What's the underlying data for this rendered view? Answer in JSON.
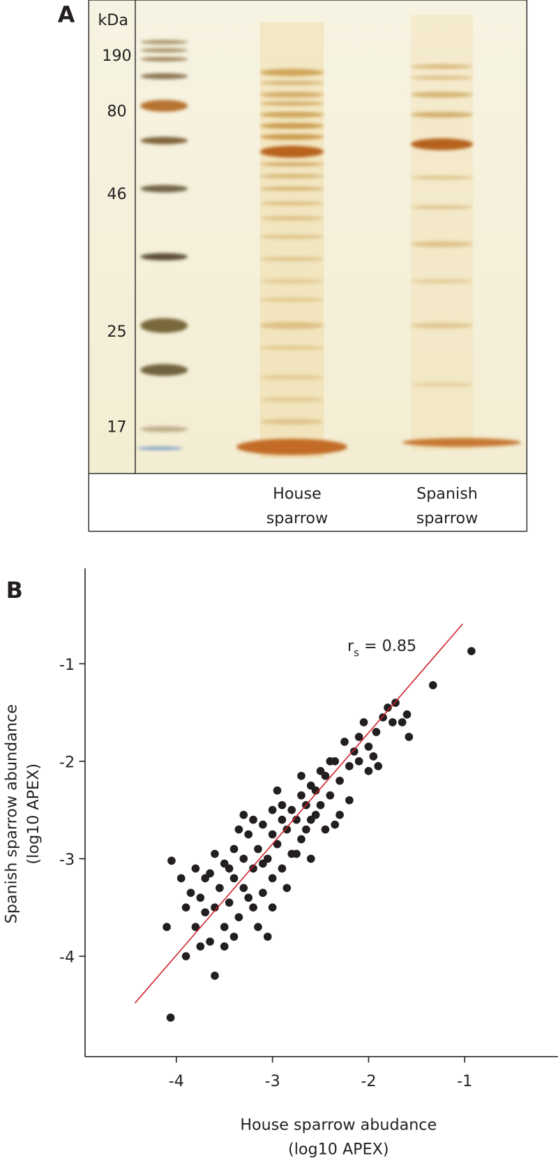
{
  "panel_a": {
    "label": "A",
    "unit": "kDa",
    "markers": [
      "190",
      "80",
      "46",
      "25",
      "17"
    ],
    "lanes": [
      [
        "House",
        "sparrow"
      ],
      [
        "Spanish",
        "sparrow"
      ]
    ]
  },
  "chart_data": {
    "type": "scatter",
    "label": "B",
    "xlabel": [
      "House sparrow abudance",
      "(log10 APEX)"
    ],
    "ylabel": [
      "Spanish sparrow abundance",
      "(log10 APEX)"
    ],
    "annotation": {
      "symbol": "r",
      "subscript": "s",
      "text": " = 0.85"
    },
    "xlim": [
      -4.95,
      -0.03
    ],
    "ylim": [
      -5.03,
      -0.02
    ],
    "xticks": [
      -4,
      -3,
      -2,
      -1
    ],
    "yticks": [
      -1,
      -2,
      -3,
      -4
    ],
    "color": "#231f20",
    "fit_line": {
      "x": [
        -4.43,
        -1.02
      ],
      "y": [
        -4.48,
        -0.59
      ],
      "color": "#d0202a"
    },
    "x": [
      -0.93,
      -1.33,
      -1.58,
      -1.6,
      -1.65,
      -1.72,
      -1.75,
      -1.8,
      -1.85,
      -1.92,
      -1.95,
      -2.0,
      -2.05,
      -2.1,
      -2.15,
      -2.2,
      -2.25,
      -2.3,
      -2.35,
      -2.4,
      -2.45,
      -2.5,
      -2.5,
      -2.55,
      -2.6,
      -2.6,
      -2.65,
      -2.7,
      -2.7,
      -2.75,
      -2.8,
      -2.8,
      -2.85,
      -2.9,
      -2.9,
      -2.95,
      -3.0,
      -3.0,
      -3.05,
      -3.1,
      -3.1,
      -3.15,
      -3.2,
      -3.2,
      -3.25,
      -3.3,
      -3.3,
      -3.35,
      -3.4,
      -3.4,
      -3.45,
      -3.5,
      -3.5,
      -3.55,
      -3.6,
      -3.6,
      -3.6,
      -3.65,
      -3.7,
      -3.7,
      -3.75,
      -3.8,
      -3.8,
      -3.85,
      -3.9,
      -3.9,
      -3.95,
      -4.05,
      -4.1,
      -4.06,
      -3.0,
      -2.85,
      -3.15,
      -3.05,
      -2.6,
      -2.45,
      -2.3,
      -2.0,
      -2.2,
      -3.35,
      -3.5,
      -3.2,
      -2.9,
      -2.75,
      -3.25,
      -3.45,
      -3.65,
      -3.75,
      -3.4,
      -2.55,
      -2.4,
      -1.9,
      -2.1,
      -3.0,
      -2.7,
      -3.1,
      -2.95,
      -3.3,
      -2.65,
      -2.35
    ],
    "y": [
      -0.87,
      -1.22,
      -1.75,
      -1.52,
      -1.6,
      -1.4,
      -1.6,
      -1.45,
      -1.55,
      -1.7,
      -1.95,
      -1.85,
      -1.6,
      -1.75,
      -1.9,
      -2.05,
      -1.8,
      -2.2,
      -2.0,
      -2.35,
      -2.15,
      -2.45,
      -2.1,
      -2.3,
      -2.6,
      -2.25,
      -2.45,
      -2.8,
      -2.35,
      -2.6,
      -2.95,
      -2.5,
      -2.7,
      -3.1,
      -2.6,
      -2.85,
      -3.2,
      -2.75,
      -3.0,
      -3.35,
      -2.65,
      -2.9,
      -3.1,
      -3.5,
      -2.75,
      -3.0,
      -3.3,
      -3.6,
      -2.9,
      -3.2,
      -3.45,
      -3.05,
      -3.7,
      -3.3,
      -2.95,
      -3.5,
      -4.2,
      -3.85,
      -3.2,
      -3.55,
      -3.4,
      -3.1,
      -3.7,
      -3.35,
      -3.5,
      -4.0,
      -3.2,
      -3.02,
      -3.7,
      -4.63,
      -2.5,
      -3.3,
      -3.7,
      -3.8,
      -3.0,
      -2.7,
      -2.55,
      -2.1,
      -2.4,
      -2.7,
      -3.9,
      -2.6,
      -2.45,
      -2.95,
      -3.4,
      -3.1,
      -3.15,
      -3.9,
      -3.8,
      -2.55,
      -2.0,
      -2.05,
      -2.0,
      -3.5,
      -2.15,
      -3.05,
      -2.3,
      -2.55,
      -2.7,
      -2.65
    ]
  }
}
